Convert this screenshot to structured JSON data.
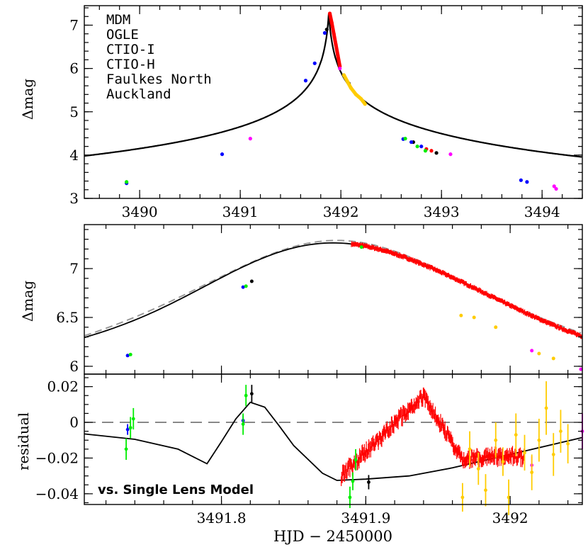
{
  "chart_data": [
    {
      "type": "scatter",
      "panel": "top",
      "xlabel": "",
      "ylabel": "Δmag",
      "xlim": [
        3489.45,
        3494.4
      ],
      "ylim": [
        3.0,
        7.45
      ],
      "xticks": [
        3490,
        3491,
        3492,
        3493,
        3494
      ],
      "yticks": [
        3,
        4,
        5,
        6,
        7
      ],
      "legend_placement": "top-left",
      "legend": [
        {
          "name": "MDM",
          "color": "#ff0000"
        },
        {
          "name": "OGLE",
          "color": "#000000"
        },
        {
          "name": "CTIO-I",
          "color": "#0000ff"
        },
        {
          "name": "CTIO-H",
          "color": "#00ee00"
        },
        {
          "name": "Faulkes North",
          "color": "#ff00ff"
        },
        {
          "name": "Auckland",
          "color": "#ffcc00"
        }
      ],
      "model_curve": {
        "t0": 3491.88,
        "peak": 7.28,
        "color": "#000000"
      },
      "series": [
        {
          "name": "MDM",
          "color": "#ff0000",
          "points": [
            [
              3491.89,
              7.27
            ],
            [
              3491.91,
              7.05
            ],
            [
              3491.93,
              6.8
            ],
            [
              3491.95,
              6.55
            ],
            [
              3491.97,
              6.3
            ],
            [
              3491.99,
              6.05
            ],
            [
              3492.85,
              4.14
            ],
            [
              3492.9,
              4.1
            ]
          ]
        },
        {
          "name": "OGLE",
          "color": "#000000",
          "points": [
            [
              3491.86,
              6.9
            ],
            [
              3492.08,
              5.65
            ],
            [
              3492.72,
              4.3
            ],
            [
              3492.95,
              4.05
            ]
          ]
        },
        {
          "name": "CTIO-I",
          "color": "#0000ff",
          "points": [
            [
              3489.87,
              3.35
            ],
            [
              3490.82,
              4.02
            ],
            [
              3491.65,
              5.72
            ],
            [
              3491.74,
              6.12
            ],
            [
              3491.84,
              6.82
            ],
            [
              3492.62,
              4.37
            ],
            [
              3492.7,
              4.3
            ],
            [
              3492.8,
              4.2
            ],
            [
              3493.79,
              3.42
            ],
            [
              3493.85,
              3.38
            ]
          ]
        },
        {
          "name": "CTIO-H",
          "color": "#00ee00",
          "points": [
            [
              3489.87,
              3.38
            ],
            [
              3492.64,
              4.38
            ],
            [
              3492.76,
              4.2
            ],
            [
              3492.84,
              4.1
            ]
          ]
        },
        {
          "name": "Faulkes North",
          "color": "#ff00ff",
          "points": [
            [
              3491.1,
              4.38
            ],
            [
              3491.99,
              6.0
            ],
            [
              3493.09,
              4.02
            ],
            [
              3494.12,
              3.28
            ],
            [
              3494.14,
              3.22
            ]
          ]
        },
        {
          "name": "Auckland",
          "color": "#ffcc00",
          "points": [
            [
              3492.03,
              5.85
            ],
            [
              3492.1,
              5.55
            ],
            [
              3492.15,
              5.4
            ],
            [
              3492.2,
              5.3
            ],
            [
              3492.24,
              5.18
            ]
          ]
        }
      ]
    },
    {
      "type": "scatter",
      "panel": "middle",
      "xlabel": "",
      "ylabel": "Δmag",
      "xlim": [
        3491.705,
        3492.05
      ],
      "ylim": [
        5.92,
        7.45
      ],
      "yticks": [
        6,
        6.5,
        7
      ],
      "model_curves": [
        {
          "style": "solid",
          "color": "#000000"
        },
        {
          "style": "dashed",
          "color": "#999999"
        }
      ],
      "series": [
        {
          "name": "MDM",
          "color": "#ff0000",
          "x_range": [
            3491.89,
            3492.05
          ],
          "count": 420
        },
        {
          "name": "OGLE",
          "color": "#000000",
          "points": [
            [
              3491.821,
              6.87
            ]
          ]
        },
        {
          "name": "CTIO-I",
          "color": "#0000ff",
          "points": [
            [
              3491.735,
              6.11
            ],
            [
              3491.815,
              6.81
            ]
          ]
        },
        {
          "name": "CTIO-H",
          "color": "#00ee00",
          "points": [
            [
              3491.737,
              6.12
            ],
            [
              3491.817,
              6.82
            ],
            [
              3491.897,
              7.22
            ]
          ]
        },
        {
          "name": "Faulkes North",
          "color": "#ff00ff",
          "points": [
            [
              3492.015,
              6.16
            ],
            [
              3492.049,
              5.97
            ]
          ]
        },
        {
          "name": "Auckland",
          "color": "#ffcc00",
          "points": [
            [
              3491.966,
              6.52
            ],
            [
              3491.975,
              6.5
            ],
            [
              3491.99,
              6.4
            ],
            [
              3492.02,
              6.13
            ],
            [
              3492.03,
              6.08
            ]
          ]
        }
      ]
    },
    {
      "type": "scatter",
      "panel": "bottom",
      "xlabel": "HJD − 2450000",
      "ylabel": "residual",
      "xlim": [
        3491.705,
        3492.05
      ],
      "ylim": [
        -0.046,
        0.027
      ],
      "xticks": [
        3491.8,
        3491.9,
        3492
      ],
      "yticks": [
        -0.04,
        -0.02,
        0,
        0.02
      ],
      "ytick_labels": [
        "−0.04",
        "−0.02",
        "0",
        "0.02"
      ],
      "annotation": "vs. Single Lens Model",
      "zero_line": {
        "style": "dashed",
        "color": "#555555"
      },
      "model_curve": [
        [
          3491.705,
          -0.0065
        ],
        [
          3491.74,
          -0.0095
        ],
        [
          3491.77,
          -0.015
        ],
        [
          3491.79,
          -0.0232
        ],
        [
          3491.8,
          -0.0108
        ],
        [
          3491.81,
          0.002
        ],
        [
          3491.82,
          0.0112
        ],
        [
          3491.83,
          0.0085
        ],
        [
          3491.84,
          -0.002
        ],
        [
          3491.85,
          -0.013
        ],
        [
          3491.87,
          -0.0285
        ],
        [
          3491.88,
          -0.0325
        ],
        [
          3491.9,
          -0.0318
        ],
        [
          3491.93,
          -0.03
        ],
        [
          3491.96,
          -0.0255
        ],
        [
          3492.0,
          -0.018
        ],
        [
          3492.05,
          -0.0085
        ]
      ],
      "series": [
        {
          "name": "MDM",
          "color": "#ff0000",
          "x_range": [
            3491.883,
            3492.01
          ],
          "count": 380
        },
        {
          "name": "OGLE",
          "color": "#000000",
          "points": [
            [
              3491.821,
              0.016,
              0.005
            ],
            [
              3491.902,
              -0.0335,
              0.004
            ]
          ]
        },
        {
          "name": "CTIO-I",
          "color": "#0000ff",
          "points": [
            [
              3491.735,
              -0.004,
              0.003
            ],
            [
              3491.815,
              0.001,
              0.003
            ]
          ]
        },
        {
          "name": "CTIO-H",
          "color": "#00ee00",
          "points": [
            [
              3491.734,
              -0.015,
              0.006
            ],
            [
              3491.737,
              -0.003,
              0.006
            ],
            [
              3491.739,
              0.002,
              0.006
            ],
            [
              3491.815,
              -0.001,
              0.006
            ],
            [
              3491.817,
              0.015,
              0.006
            ],
            [
              3491.889,
              -0.042,
              0.006
            ],
            [
              3491.891,
              -0.033,
              0.005
            ],
            [
              3491.893,
              -0.021,
              0.006
            ]
          ]
        },
        {
          "name": "Faulkes North",
          "color": "#ff00ff",
          "points": [
            [
              3492.015,
              -0.024,
              0.005
            ],
            [
              3492.05,
              -0.005,
              0.01
            ]
          ]
        },
        {
          "name": "Auckland",
          "color": "#ffcc00",
          "points": [
            [
              3491.967,
              -0.042,
              0.008
            ],
            [
              3491.972,
              -0.015,
              0.01
            ],
            [
              3491.978,
              -0.026,
              0.009
            ],
            [
              3491.983,
              -0.038,
              0.009
            ],
            [
              3491.99,
              -0.01,
              0.01
            ],
            [
              3491.995,
              -0.022,
              0.008
            ],
            [
              3491.999,
              -0.042,
              0.01
            ],
            [
              3492.004,
              -0.007,
              0.012
            ],
            [
              3492.01,
              -0.017,
              0.01
            ],
            [
              3492.015,
              -0.028,
              0.01
            ],
            [
              3492.02,
              -0.01,
              0.012
            ],
            [
              3492.025,
              0.008,
              0.015
            ],
            [
              3492.03,
              -0.018,
              0.012
            ],
            [
              3492.035,
              -0.005,
              0.012
            ],
            [
              3492.04,
              -0.012,
              0.011
            ]
          ]
        }
      ]
    }
  ]
}
